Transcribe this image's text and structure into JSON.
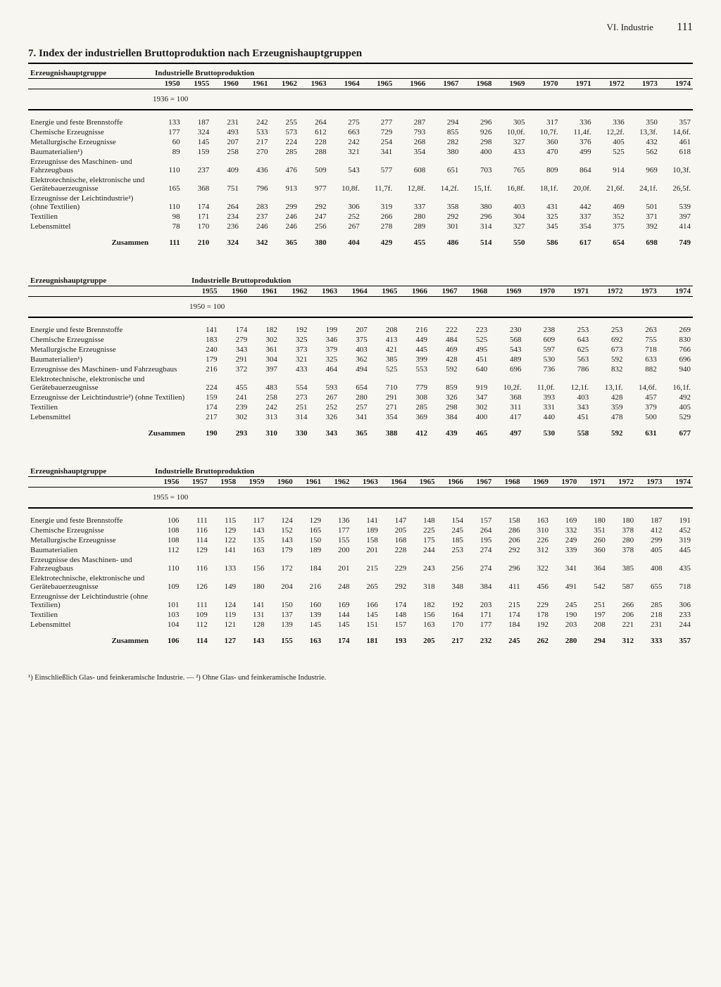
{
  "header": {
    "section": "VI. Industrie",
    "page": "111"
  },
  "title": "7. Index der industriellen Bruttoproduktion nach Erzeugnishauptgruppen",
  "colLabel": "Erzeugnishauptgruppe",
  "metricLabel": "Industrielle Bruttoproduktion",
  "sumLabel": "Zusammen",
  "footnote": "¹) Einschließlich Glas- und feinkeramische Industrie. — ²) Ohne Glas- und feinkeramische Industrie.",
  "tables": [
    {
      "years": [
        "1950",
        "1955",
        "1960",
        "1961",
        "1962",
        "1963",
        "1964",
        "1965",
        "1966",
        "1967",
        "1968",
        "1969",
        "1970",
        "1971",
        "1972",
        "1973",
        "1974"
      ],
      "base": "1936 = 100",
      "labelWidth": "168px",
      "rows": [
        {
          "label": "Energie und feste Brennstoffe",
          "v": [
            "133",
            "187",
            "231",
            "242",
            "255",
            "264",
            "275",
            "277",
            "287",
            "294",
            "296",
            "305",
            "317",
            "336",
            "336",
            "350",
            "357"
          ]
        },
        {
          "label": "Chemische Erzeugnisse",
          "v": [
            "177",
            "324",
            "493",
            "533",
            "573",
            "612",
            "663",
            "729",
            "793",
            "855",
            "926",
            "10,0f.",
            "10,7f.",
            "11,4f.",
            "12,2f.",
            "13,3f.",
            "14,6f."
          ]
        },
        {
          "label": "Metallurgische Erzeugnisse",
          "v": [
            "60",
            "145",
            "207",
            "217",
            "224",
            "228",
            "242",
            "254",
            "268",
            "282",
            "298",
            "327",
            "360",
            "376",
            "405",
            "432",
            "461"
          ]
        },
        {
          "label": "Baumaterialien¹)",
          "v": [
            "89",
            "159",
            "258",
            "270",
            "285",
            "288",
            "321",
            "341",
            "354",
            "380",
            "400",
            "433",
            "470",
            "499",
            "525",
            "562",
            "618"
          ]
        },
        {
          "label": "Erzeugnisse des Maschinen- und Fahrzeugbaus",
          "v": [
            "110",
            "237",
            "409",
            "436",
            "476",
            "509",
            "543",
            "577",
            "608",
            "651",
            "703",
            "765",
            "809",
            "864",
            "914",
            "969",
            "10,3f."
          ]
        },
        {
          "label": "Elektrotechnische, elektronische und Gerätebauerzeugnisse",
          "v": [
            "165",
            "368",
            "751",
            "796",
            "913",
            "977",
            "10,8f.",
            "11,7f.",
            "12,8f.",
            "14,2f.",
            "15,1f.",
            "16,8f.",
            "18,1f.",
            "20,0f.",
            "21,6f.",
            "24,1f.",
            "26,5f."
          ]
        },
        {
          "label": "Erzeugnisse der Leichtindustrie²) (ohne Textilien)",
          "v": [
            "110",
            "174",
            "264",
            "283",
            "299",
            "292",
            "306",
            "319",
            "337",
            "358",
            "380",
            "403",
            "431",
            "442",
            "469",
            "501",
            "539"
          ]
        },
        {
          "label": "Textilien",
          "v": [
            "98",
            "171",
            "234",
            "237",
            "246",
            "247",
            "252",
            "266",
            "280",
            "292",
            "296",
            "304",
            "325",
            "337",
            "352",
            "371",
            "397"
          ]
        },
        {
          "label": "Lebensmittel",
          "v": [
            "78",
            "170",
            "236",
            "246",
            "246",
            "256",
            "267",
            "278",
            "289",
            "301",
            "314",
            "327",
            "345",
            "354",
            "375",
            "392",
            "414"
          ]
        }
      ],
      "sum": [
        "111",
        "210",
        "324",
        "342",
        "365",
        "380",
        "404",
        "429",
        "455",
        "486",
        "514",
        "550",
        "586",
        "617",
        "654",
        "698",
        "749"
      ]
    },
    {
      "years": [
        "1955",
        "1960",
        "1961",
        "1962",
        "1963",
        "1964",
        "1965",
        "1966",
        "1967",
        "1968",
        "1969",
        "1970",
        "1971",
        "1972",
        "1973",
        "1974"
      ],
      "base": "1950 = 100",
      "labelWidth": "220px",
      "rows": [
        {
          "label": "Energie und feste Brennstoffe",
          "v": [
            "141",
            "174",
            "182",
            "192",
            "199",
            "207",
            "208",
            "216",
            "222",
            "223",
            "230",
            "238",
            "253",
            "253",
            "263",
            "269"
          ]
        },
        {
          "label": "Chemische Erzeugnisse",
          "v": [
            "183",
            "279",
            "302",
            "325",
            "346",
            "375",
            "413",
            "449",
            "484",
            "525",
            "568",
            "609",
            "643",
            "692",
            "755",
            "830"
          ]
        },
        {
          "label": "Metallurgische Erzeugnisse",
          "v": [
            "240",
            "343",
            "361",
            "373",
            "379",
            "403",
            "421",
            "445",
            "469",
            "495",
            "543",
            "597",
            "625",
            "673",
            "718",
            "766"
          ]
        },
        {
          "label": "Baumaterialien¹)",
          "v": [
            "179",
            "291",
            "304",
            "321",
            "325",
            "362",
            "385",
            "399",
            "428",
            "451",
            "489",
            "530",
            "563",
            "592",
            "633",
            "696"
          ]
        },
        {
          "label": "Erzeugnisse des Maschinen- und Fahrzeugbaus",
          "v": [
            "216",
            "372",
            "397",
            "433",
            "464",
            "494",
            "525",
            "553",
            "592",
            "640",
            "696",
            "736",
            "786",
            "832",
            "882",
            "940"
          ]
        },
        {
          "label": "Elektrotechnische, elektronische und Gerätebauerzeugnisse",
          "v": [
            "224",
            "455",
            "483",
            "554",
            "593",
            "654",
            "710",
            "779",
            "859",
            "919",
            "10,2f.",
            "11,0f.",
            "12,1f.",
            "13,1f.",
            "14,6f.",
            "16,1f."
          ]
        },
        {
          "label": "Erzeugnisse der Leichtindustrie²) (ohne Textilien)",
          "v": [
            "159",
            "241",
            "258",
            "273",
            "267",
            "280",
            "291",
            "308",
            "326",
            "347",
            "368",
            "393",
            "403",
            "428",
            "457",
            "492"
          ]
        },
        {
          "label": "Textilien",
          "v": [
            "174",
            "239",
            "242",
            "251",
            "252",
            "257",
            "271",
            "285",
            "298",
            "302",
            "311",
            "331",
            "343",
            "359",
            "379",
            "405"
          ]
        },
        {
          "label": "Lebensmittel",
          "v": [
            "217",
            "302",
            "313",
            "314",
            "326",
            "341",
            "354",
            "369",
            "384",
            "400",
            "417",
            "440",
            "451",
            "478",
            "500",
            "529"
          ]
        }
      ],
      "sum": [
        "190",
        "293",
        "310",
        "330",
        "343",
        "365",
        "388",
        "412",
        "439",
        "465",
        "497",
        "530",
        "558",
        "592",
        "631",
        "677"
      ]
    },
    {
      "years": [
        "1956",
        "1957",
        "1958",
        "1959",
        "1960",
        "1961",
        "1962",
        "1963",
        "1964",
        "1965",
        "1966",
        "1967",
        "1968",
        "1969",
        "1970",
        "1971",
        "1972",
        "1973",
        "1974"
      ],
      "base": "1955 = 100",
      "labelWidth": "168px",
      "rows": [
        {
          "label": "Energie und feste Brennstoffe",
          "v": [
            "106",
            "111",
            "115",
            "117",
            "124",
            "129",
            "136",
            "141",
            "147",
            "148",
            "154",
            "157",
            "158",
            "163",
            "169",
            "180",
            "180",
            "187",
            "191"
          ]
        },
        {
          "label": "Chemische Erzeugnisse",
          "v": [
            "108",
            "116",
            "129",
            "143",
            "152",
            "165",
            "177",
            "189",
            "205",
            "225",
            "245",
            "264",
            "286",
            "310",
            "332",
            "351",
            "378",
            "412",
            "452"
          ]
        },
        {
          "label": "Metallurgische Erzeugnisse",
          "v": [
            "108",
            "114",
            "122",
            "135",
            "143",
            "150",
            "155",
            "158",
            "168",
            "175",
            "185",
            "195",
            "206",
            "226",
            "249",
            "260",
            "280",
            "299",
            "319"
          ]
        },
        {
          "label": "Baumaterialien",
          "v": [
            "112",
            "129",
            "141",
            "163",
            "179",
            "189",
            "200",
            "201",
            "228",
            "244",
            "253",
            "274",
            "292",
            "312",
            "339",
            "360",
            "378",
            "405",
            "445"
          ]
        },
        {
          "label": "Erzeugnisse des Maschinen- und Fahrzeugbaus",
          "v": [
            "110",
            "116",
            "133",
            "156",
            "172",
            "184",
            "201",
            "215",
            "229",
            "243",
            "256",
            "274",
            "296",
            "322",
            "341",
            "364",
            "385",
            "408",
            "435"
          ]
        },
        {
          "label": "Elektrotechnische, elektronische und Gerätebauerzeugnisse",
          "v": [
            "109",
            "126",
            "149",
            "180",
            "204",
            "216",
            "248",
            "265",
            "292",
            "318",
            "348",
            "384",
            "411",
            "456",
            "491",
            "542",
            "587",
            "655",
            "718"
          ]
        },
        {
          "label": "Erzeugnisse der Leichtindustrie (ohne Textilien)",
          "v": [
            "101",
            "111",
            "124",
            "141",
            "150",
            "160",
            "169",
            "166",
            "174",
            "182",
            "192",
            "203",
            "215",
            "229",
            "245",
            "251",
            "266",
            "285",
            "306"
          ]
        },
        {
          "label": "Textilien",
          "v": [
            "103",
            "109",
            "119",
            "131",
            "137",
            "139",
            "144",
            "145",
            "148",
            "156",
            "164",
            "171",
            "174",
            "178",
            "190",
            "197",
            "206",
            "218",
            "233"
          ]
        },
        {
          "label": "Lebensmittel",
          "v": [
            "104",
            "112",
            "121",
            "128",
            "139",
            "145",
            "145",
            "151",
            "157",
            "163",
            "170",
            "177",
            "184",
            "192",
            "203",
            "208",
            "221",
            "231",
            "244"
          ]
        }
      ],
      "sum": [
        "106",
        "114",
        "127",
        "143",
        "155",
        "163",
        "174",
        "181",
        "193",
        "205",
        "217",
        "232",
        "245",
        "262",
        "280",
        "294",
        "312",
        "333",
        "357"
      ]
    }
  ]
}
